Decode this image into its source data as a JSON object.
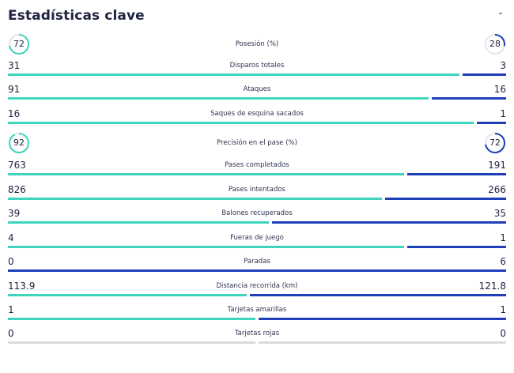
{
  "header": {
    "title": "Estadísticas clave",
    "collapse_icon": "chevron-up-icon"
  },
  "colors": {
    "home": "#3fd5bd",
    "away": "#1f3fb8",
    "track": "#d9dbe0",
    "ring_track": "#e4e6ea"
  },
  "stats": [
    {
      "label": "Posesión (%)",
      "home": "72",
      "away": "28",
      "home_share": 0.72,
      "type": "ring"
    },
    {
      "label": "Disparos totales",
      "home": "31",
      "away": "3",
      "home_share": 0.912,
      "type": "bar"
    },
    {
      "label": "Ataques",
      "home": "91",
      "away": "16",
      "home_share": 0.85,
      "type": "bar"
    },
    {
      "label": "Saques de esquina sacados",
      "home": "16",
      "away": "1",
      "home_share": 0.941,
      "type": "bar"
    },
    {
      "label": "Precisión en el pase (%)",
      "home": "92",
      "away": "72",
      "home_share": 0.92,
      "away_share": 0.72,
      "type": "ring"
    },
    {
      "label": "Pases completados",
      "home": "763",
      "away": "191",
      "home_share": 0.8,
      "type": "bar"
    },
    {
      "label": "Pases intentados",
      "home": "826",
      "away": "266",
      "home_share": 0.756,
      "type": "bar"
    },
    {
      "label": "Balones recuperados",
      "home": "39",
      "away": "35",
      "home_share": 0.527,
      "type": "bar"
    },
    {
      "label": "Fueras de juego",
      "home": "4",
      "away": "1",
      "home_share": 0.8,
      "type": "bar"
    },
    {
      "label": "Paradas",
      "home": "0",
      "away": "6",
      "home_share": 0.0,
      "type": "bar"
    },
    {
      "label": "Distancia recorrida (km)",
      "home": "113.9",
      "away": "121.8",
      "home_share": 0.483,
      "type": "bar"
    },
    {
      "label": "Tarjetas amarillas",
      "home": "1",
      "away": "1",
      "home_share": 0.5,
      "type": "bar"
    },
    {
      "label": "Tarjetas rojas",
      "home": "0",
      "away": "0",
      "home_share": 0.5,
      "type": "bar",
      "empty": true
    }
  ]
}
